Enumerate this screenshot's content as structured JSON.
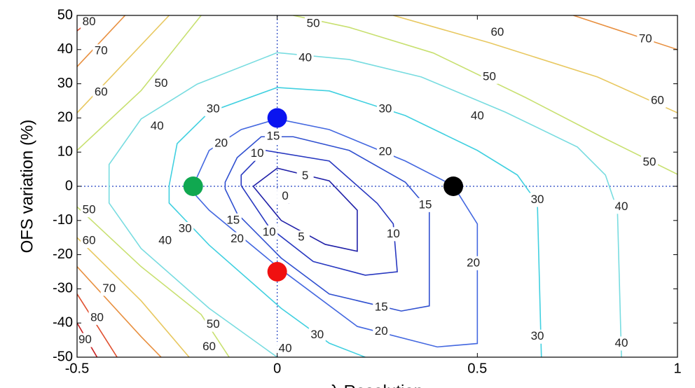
{
  "chart_data": {
    "type": "contour",
    "xlabel": "λ Resolution",
    "ylabel": "OFS variation (%)",
    "xlim": [
      -0.5,
      1
    ],
    "xticks": [
      -0.5,
      0,
      0.5,
      1
    ],
    "ylim": [
      -50,
      50
    ],
    "yticks": [
      -50,
      -40,
      -30,
      -20,
      -10,
      0,
      10,
      20,
      30,
      40,
      50
    ],
    "ref_lines": {
      "x": 0,
      "y": 0
    },
    "contours": [
      {
        "level": 0,
        "color": "#1a1a90",
        "lines": [
          [
            [
              0,
              -1
            ],
            [
              0.03,
              -5
            ],
            [
              0.005,
              -3
            ],
            [
              0,
              -1
            ]
          ]
        ],
        "labels": [
          [
            0.02,
            -3
          ]
        ]
      },
      {
        "level": 5,
        "color": "#2020a8",
        "lines": [
          [
            [
              -0.06,
              0
            ],
            [
              0,
              5.3
            ],
            [
              0.13,
              1.6
            ],
            [
              0.2,
              -7
            ],
            [
              0.2,
              -19
            ],
            [
              0.12,
              -17
            ],
            [
              0.01,
              -10
            ],
            [
              -0.06,
              0
            ]
          ]
        ],
        "labels": [
          [
            0.07,
            3
          ],
          [
            0.06,
            -15
          ]
        ]
      },
      {
        "level": 10,
        "color": "#2838c0",
        "lines": [
          [
            [
              -0.09,
              0.2
            ],
            [
              -0.09,
              3.3
            ],
            [
              -0.03,
              10.5
            ],
            [
              0.13,
              7.4
            ],
            [
              0.25,
              -5
            ],
            [
              0.29,
              -11
            ],
            [
              0.3,
              -25
            ],
            [
              0.22,
              -26
            ],
            [
              0.09,
              -22
            ],
            [
              -0.02,
              -12
            ],
            [
              -0.09,
              0.2
            ]
          ]
        ],
        "labels": [
          [
            -0.05,
            9.5
          ],
          [
            0.29,
            -14
          ],
          [
            -0.02,
            -13.5
          ]
        ]
      },
      {
        "level": 15,
        "color": "#3050d0",
        "lines": [
          [
            [
              -0.13,
              -0.8
            ],
            [
              -0.13,
              1.2
            ],
            [
              -0.1,
              8.4
            ],
            [
              -0.04,
              14.5
            ],
            [
              0.04,
              14.5
            ],
            [
              0.18,
              10.5
            ],
            [
              0.32,
              1.2
            ],
            [
              0.38,
              -7
            ],
            [
              0.38,
              -35
            ],
            [
              0.31,
              -36.5
            ],
            [
              0.13,
              -31.5
            ],
            [
              0.01,
              -21
            ],
            [
              -0.1,
              -8
            ],
            [
              -0.13,
              -0.8
            ]
          ]
        ],
        "labels": [
          [
            -0.01,
            14.5
          ],
          [
            0.37,
            -5.5
          ],
          [
            0.26,
            -35.5
          ],
          [
            -0.11,
            -10
          ]
        ]
      },
      {
        "level": 20,
        "color": "#4468e0",
        "lines": [
          [
            [
              -0.21,
              -1.8
            ],
            [
              -0.21,
              0.2
            ],
            [
              -0.17,
              10.5
            ],
            [
              -0.09,
              16.6
            ],
            [
              0,
              19.7
            ],
            [
              0.13,
              16.6
            ],
            [
              0.32,
              7.4
            ],
            [
              0.44,
              0.2
            ],
            [
              0.5,
              -11
            ],
            [
              0.5,
              -46
            ],
            [
              0.4,
              -47
            ],
            [
              0.2,
              -41
            ],
            [
              0.01,
              -24.4
            ],
            [
              -0.17,
              -7
            ],
            [
              -0.21,
              -1.8
            ]
          ]
        ],
        "labels": [
          [
            -0.14,
            12.5
          ],
          [
            0.27,
            10
          ],
          [
            0.49,
            -22.5
          ],
          [
            0.26,
            -42.5
          ],
          [
            -0.1,
            -15.5
          ]
        ]
      },
      {
        "level": 30,
        "color": "#40d0e0",
        "lines": [
          [
            [
              0.22,
              -50
            ],
            [
              0.13,
              -45.9
            ],
            [
              0.01,
              -35.7
            ],
            [
              -0.17,
              -17.2
            ],
            [
              -0.27,
              -4.9
            ],
            [
              -0.27,
              0.2
            ],
            [
              -0.25,
              12.5
            ],
            [
              -0.17,
              21.7
            ],
            [
              0,
              28.9
            ],
            [
              0.13,
              27.9
            ],
            [
              0.32,
              20.7
            ],
            [
              0.5,
              10.5
            ],
            [
              0.6,
              3.3
            ],
            [
              0.65,
              -4.9
            ],
            [
              0.66,
              -50
            ]
          ]
        ],
        "labels": [
          [
            -0.16,
            22.5
          ],
          [
            0.27,
            22.5
          ],
          [
            0.65,
            -4
          ],
          [
            0.65,
            -44
          ],
          [
            0.1,
            -43.5
          ],
          [
            -0.23,
            -12.5
          ]
        ]
      },
      {
        "level": 40,
        "color": "#78dce0",
        "lines": [
          [
            [
              0,
              -50
            ],
            [
              -0.17,
              -35.7
            ],
            [
              -0.34,
              -18.2
            ],
            [
              -0.42,
              -4.9
            ],
            [
              -0.42,
              6.4
            ],
            [
              -0.34,
              19.7
            ],
            [
              -0.2,
              29.9
            ],
            [
              0,
              39.1
            ],
            [
              0.18,
              37.1
            ],
            [
              0.36,
              32
            ],
            [
              0.57,
              21.7
            ],
            [
              0.75,
              11.5
            ],
            [
              0.82,
              3.3
            ],
            [
              0.85,
              -7
            ],
            [
              0.86,
              -50
            ]
          ]
        ],
        "labels": [
          [
            -0.3,
            17.5
          ],
          [
            0.07,
            37.5
          ],
          [
            0.5,
            20.5
          ],
          [
            0.86,
            -6
          ],
          [
            0.86,
            -46
          ],
          [
            0.02,
            -47.5
          ],
          [
            -0.28,
            -16
          ]
        ]
      },
      {
        "level": 50,
        "color": "#c8e070",
        "lines": [
          [
            [
              -0.5,
              10.5
            ],
            [
              -0.34,
              28
            ],
            [
              -0.19,
              50
            ]
          ],
          [
            [
              0.04,
              50
            ],
            [
              0.18,
              46.5
            ],
            [
              0.39,
              39
            ],
            [
              0.62,
              26
            ],
            [
              0.81,
              14.5
            ],
            [
              1,
              3.5
            ]
          ],
          [
            [
              -0.5,
              -6
            ],
            [
              -0.34,
              -23.5
            ],
            [
              -0.19,
              -37.5
            ],
            [
              -0.12,
              -50
            ]
          ]
        ],
        "labels": [
          [
            -0.29,
            30
          ],
          [
            0.09,
            47.5
          ],
          [
            0.53,
            32
          ],
          [
            0.93,
            7
          ],
          [
            -0.47,
            -7
          ],
          [
            -0.16,
            -40.5
          ]
        ]
      },
      {
        "level": 60,
        "color": "#e8c860",
        "lines": [
          [
            [
              -0.5,
              21.5
            ],
            [
              -0.27,
              50
            ]
          ],
          [
            [
              0.29,
              50
            ],
            [
              0.53,
              42
            ],
            [
              0.8,
              32
            ],
            [
              1,
              21.5
            ]
          ],
          [
            [
              -0.5,
              -15
            ],
            [
              -0.34,
              -33.5
            ],
            [
              -0.22,
              -50
            ]
          ]
        ],
        "labels": [
          [
            -0.44,
            27.5
          ],
          [
            0.55,
            45
          ],
          [
            0.95,
            25
          ],
          [
            -0.47,
            -16
          ],
          [
            -0.17,
            -47
          ]
        ]
      },
      {
        "level": 70,
        "color": "#e89040",
        "lines": [
          [
            [
              -0.5,
              35
            ],
            [
              -0.38,
              50
            ]
          ],
          [
            [
              0.74,
              50
            ],
            [
              1,
              40
            ]
          ],
          [
            [
              -0.5,
              -23.5
            ],
            [
              -0.34,
              -44
            ],
            [
              -0.29,
              -50
            ]
          ]
        ],
        "labels": [
          [
            -0.44,
            39.5
          ],
          [
            0.92,
            43
          ],
          [
            -0.42,
            -30
          ]
        ]
      },
      {
        "level": 80,
        "color": "#e05030",
        "lines": [
          [
            [
              -0.5,
              45.5
            ],
            [
              -0.45,
              50
            ]
          ],
          [
            [
              -0.5,
              -31.5
            ],
            [
              -0.4,
              -50
            ]
          ]
        ],
        "labels": [
          [
            -0.47,
            48
          ],
          [
            -0.45,
            -38.5
          ]
        ]
      },
      {
        "level": 90,
        "color": "#c82020",
        "lines": [
          [
            [
              -0.5,
              -40
            ],
            [
              -0.45,
              -50
            ]
          ]
        ],
        "labels": [
          [
            -0.48,
            -45
          ]
        ]
      }
    ],
    "points": [
      {
        "x": 0,
        "y": 20,
        "color": "#0a14f0"
      },
      {
        "x": -0.21,
        "y": 0,
        "color": "#10a850"
      },
      {
        "x": 0,
        "y": -25,
        "color": "#f01010"
      },
      {
        "x": 0.44,
        "y": 0,
        "color": "#000000"
      }
    ]
  }
}
